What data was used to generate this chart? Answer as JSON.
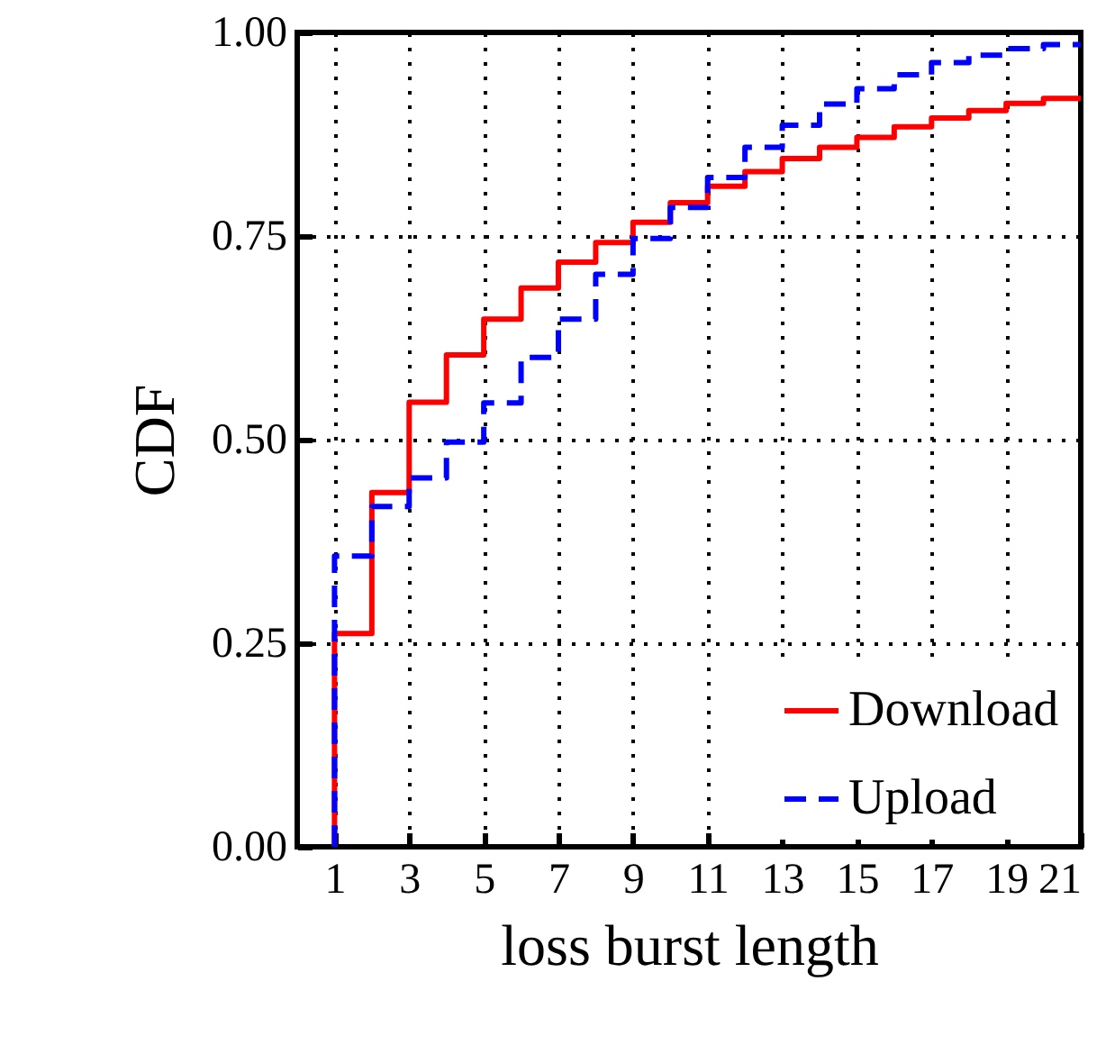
{
  "chart_data": {
    "type": "step",
    "xlabel": "loss burst length",
    "ylabel": "CDF",
    "x": [
      1,
      1,
      2,
      3,
      4,
      5,
      6,
      7,
      8,
      9,
      10,
      11,
      12,
      13,
      14,
      15,
      16,
      17,
      18,
      19,
      20,
      21
    ],
    "series": [
      {
        "name": "Download",
        "color": "#ff0000",
        "line_style": "solid",
        "values": [
          0,
          0.262,
          0.435,
          0.546,
          0.604,
          0.648,
          0.686,
          0.718,
          0.742,
          0.767,
          0.791,
          0.811,
          0.829,
          0.845,
          0.859,
          0.871,
          0.884,
          0.895,
          0.904,
          0.913,
          0.919,
          0.919
        ]
      },
      {
        "name": "Upload",
        "color": "#0000ff",
        "line_style": "dashed",
        "values": [
          0,
          0.357,
          0.418,
          0.453,
          0.497,
          0.545,
          0.601,
          0.648,
          0.703,
          0.747,
          0.785,
          0.822,
          0.859,
          0.886,
          0.912,
          0.931,
          0.948,
          0.963,
          0.972,
          0.98,
          0.985,
          0.985
        ]
      }
    ],
    "xlim": [
      0,
      21
    ],
    "ylim": [
      0,
      1
    ],
    "xticks": [
      1,
      3,
      5,
      7,
      9,
      11,
      13,
      15,
      17,
      19,
      21
    ],
    "yticks": [
      {
        "value": 0,
        "label": "0.00"
      },
      {
        "value": 0.25,
        "label": "0.25"
      },
      {
        "value": 0.5,
        "label": "0.50"
      },
      {
        "value": 0.75,
        "label": "0.75"
      },
      {
        "value": 1,
        "label": "1.00"
      }
    ],
    "grid": true,
    "legend": "bottom right"
  }
}
